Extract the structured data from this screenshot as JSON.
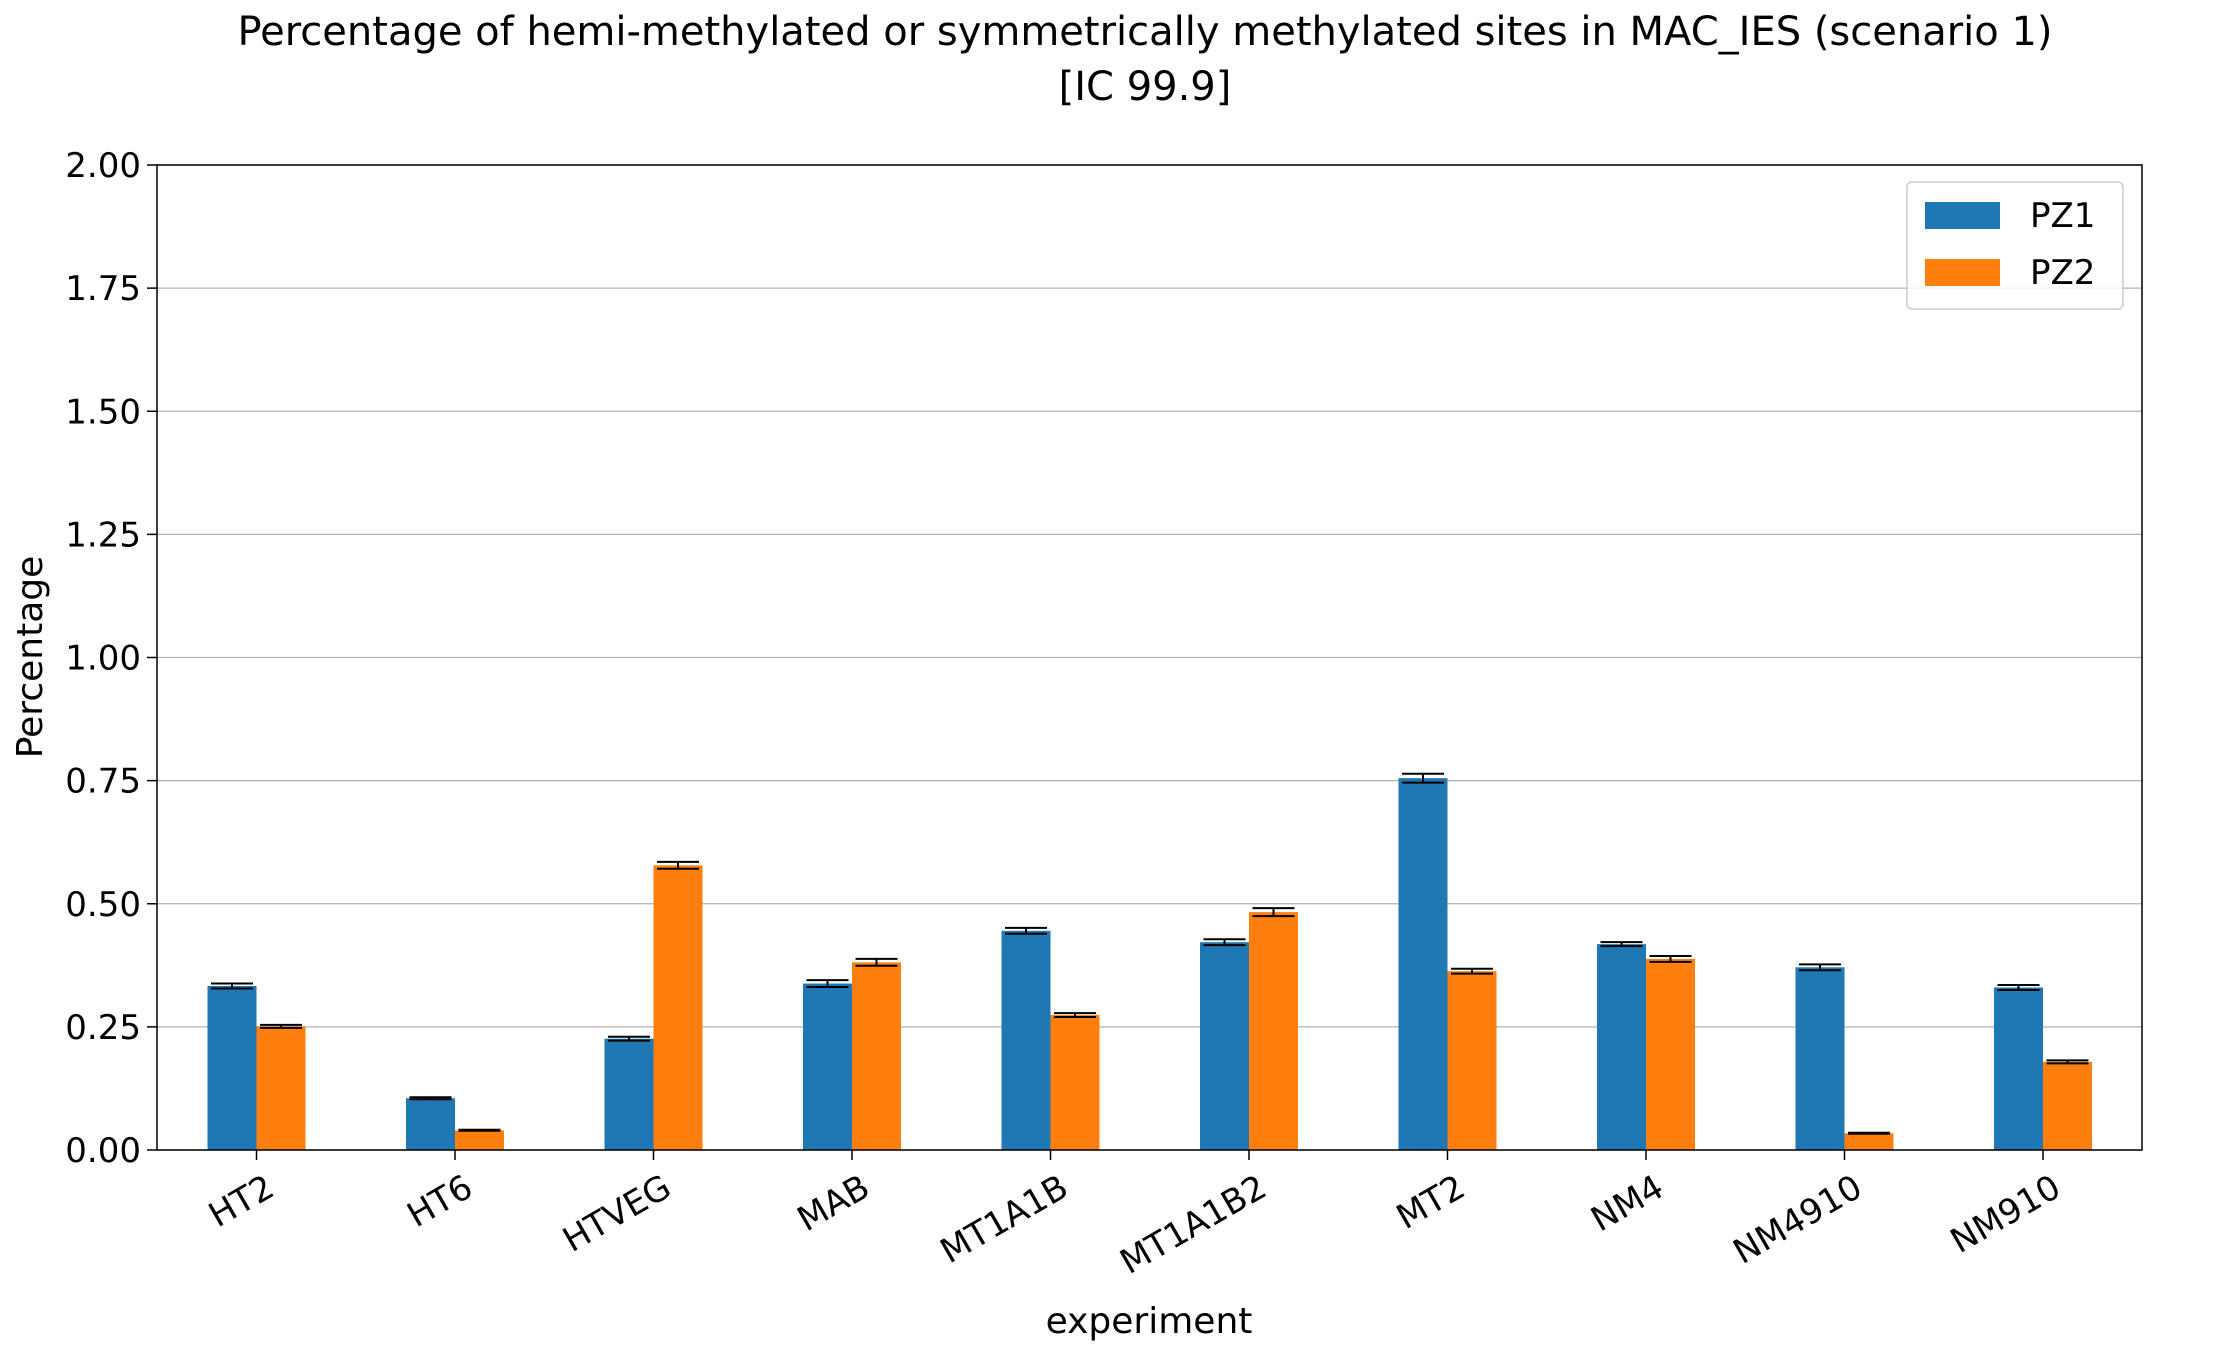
{
  "chart_data": {
    "type": "bar",
    "title": "Percentage of hemi-methylated or symmetrically methylated sites in MAC_IES (scenario 1)",
    "subtitle": "[IC 99.9]",
    "xlabel": "experiment",
    "ylabel": "Percentage",
    "ylim": [
      0,
      2.0
    ],
    "yticks": [
      "0.00",
      "0.25",
      "0.50",
      "0.75",
      "1.00",
      "1.25",
      "1.50",
      "1.75",
      "2.00"
    ],
    "grid": "horizontal",
    "legend_position": "top-right",
    "categories": [
      "HT2",
      "HT6",
      "HTVEG",
      "MAB",
      "MT1A1B",
      "MT1A1B2",
      "MT2",
      "NM4",
      "NM4910",
      "NM910"
    ],
    "series": [
      {
        "name": "PZ1",
        "color": "#1f77b4",
        "values": [
          0.333,
          0.105,
          0.226,
          0.338,
          0.445,
          0.422,
          0.755,
          0.418,
          0.371,
          0.33
        ],
        "error": [
          0.005,
          0.002,
          0.004,
          0.007,
          0.006,
          0.006,
          0.009,
          0.004,
          0.006,
          0.005
        ]
      },
      {
        "name": "PZ2",
        "color": "#ff7f0e",
        "values": [
          0.251,
          0.04,
          0.578,
          0.381,
          0.274,
          0.483,
          0.363,
          0.388,
          0.034,
          0.179
        ],
        "error": [
          0.003,
          0.001,
          0.007,
          0.007,
          0.004,
          0.008,
          0.005,
          0.006,
          0.001,
          0.003
        ]
      }
    ]
  }
}
